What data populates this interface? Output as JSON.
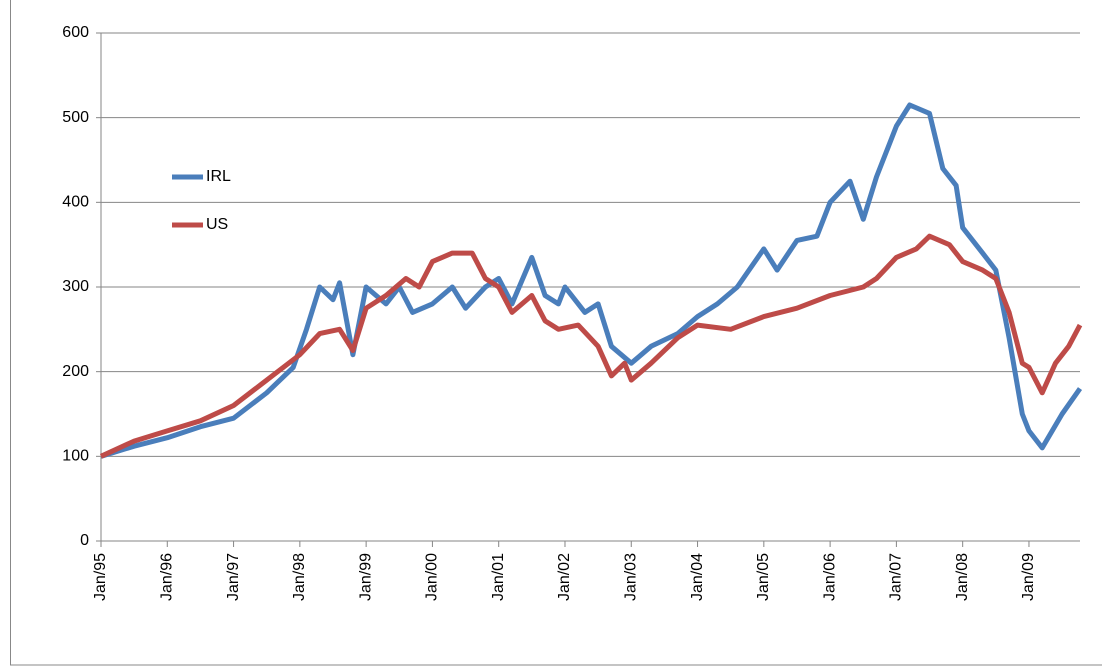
{
  "chart_data": {
    "type": "line",
    "xlim": [
      1995,
      2009.77
    ],
    "xticks": [
      {
        "value": 1995,
        "label": "Jan/95"
      },
      {
        "value": 1996,
        "label": "Jan/96"
      },
      {
        "value": 1997,
        "label": "Jan/97"
      },
      {
        "value": 1998,
        "label": "Jan/98"
      },
      {
        "value": 1999,
        "label": "Jan/99"
      },
      {
        "value": 2000,
        "label": "Jan/00"
      },
      {
        "value": 2001,
        "label": "Jan/01"
      },
      {
        "value": 2002,
        "label": "Jan/02"
      },
      {
        "value": 2003,
        "label": "Jan/03"
      },
      {
        "value": 2004,
        "label": "Jan/04"
      },
      {
        "value": 2005,
        "label": "Jan/05"
      },
      {
        "value": 2006,
        "label": "Jan/06"
      },
      {
        "value": 2007,
        "label": "Jan/07"
      },
      {
        "value": 2008,
        "label": "Jan/08"
      },
      {
        "value": 2009,
        "label": "Jan/09"
      }
    ],
    "ylim": [
      0,
      600
    ],
    "yticks": [
      0,
      100,
      200,
      300,
      400,
      500,
      600
    ],
    "grid": true,
    "legend": "left",
    "series": [
      {
        "name": "IRL",
        "color": "#4a7ebb",
        "x": [
          1995.0,
          1995.5,
          1996.0,
          1996.5,
          1997.0,
          1997.5,
          1997.9,
          1998.1,
          1998.3,
          1998.5,
          1998.6,
          1998.8,
          1999.0,
          1999.3,
          1999.5,
          1999.7,
          2000.0,
          2000.3,
          2000.5,
          2000.8,
          2001.0,
          2001.2,
          2001.5,
          2001.7,
          2001.9,
          2002.0,
          2002.3,
          2002.5,
          2002.7,
          2003.0,
          2003.3,
          2003.7,
          2004.0,
          2004.3,
          2004.6,
          2005.0,
          2005.2,
          2005.5,
          2005.8,
          2006.0,
          2006.3,
          2006.5,
          2006.7,
          2007.0,
          2007.2,
          2007.5,
          2007.7,
          2007.9,
          2008.0,
          2008.3,
          2008.5,
          2008.7,
          2008.9,
          2009.0,
          2009.2,
          2009.5,
          2009.77
        ],
        "values": [
          100,
          112,
          122,
          135,
          145,
          175,
          205,
          250,
          300,
          285,
          305,
          220,
          300,
          280,
          300,
          270,
          280,
          300,
          275,
          300,
          310,
          280,
          335,
          290,
          280,
          300,
          270,
          280,
          230,
          210,
          230,
          245,
          265,
          280,
          300,
          345,
          320,
          355,
          360,
          400,
          425,
          380,
          430,
          490,
          515,
          505,
          440,
          420,
          370,
          340,
          320,
          240,
          150,
          130,
          110,
          150,
          180
        ]
      },
      {
        "name": "US",
        "color": "#be4b48",
        "x": [
          1995.0,
          1995.5,
          1996.0,
          1996.5,
          1997.0,
          1997.5,
          1998.0,
          1998.3,
          1998.6,
          1998.8,
          1999.0,
          1999.3,
          1999.6,
          1999.8,
          2000.0,
          2000.3,
          2000.6,
          2000.8,
          2001.0,
          2001.2,
          2001.5,
          2001.7,
          2001.9,
          2002.2,
          2002.5,
          2002.7,
          2002.9,
          2003.0,
          2003.3,
          2003.7,
          2004.0,
          2004.5,
          2005.0,
          2005.5,
          2006.0,
          2006.5,
          2006.7,
          2007.0,
          2007.3,
          2007.5,
          2007.8,
          2008.0,
          2008.3,
          2008.5,
          2008.7,
          2008.9,
          2009.0,
          2009.2,
          2009.4,
          2009.6,
          2009.77
        ],
        "values": [
          100,
          118,
          130,
          142,
          160,
          190,
          220,
          245,
          250,
          225,
          275,
          290,
          310,
          300,
          330,
          340,
          340,
          310,
          300,
          270,
          290,
          260,
          250,
          255,
          230,
          195,
          210,
          190,
          210,
          240,
          255,
          250,
          265,
          275,
          290,
          300,
          310,
          335,
          345,
          360,
          350,
          330,
          320,
          310,
          270,
          210,
          205,
          175,
          210,
          230,
          255
        ]
      }
    ]
  }
}
